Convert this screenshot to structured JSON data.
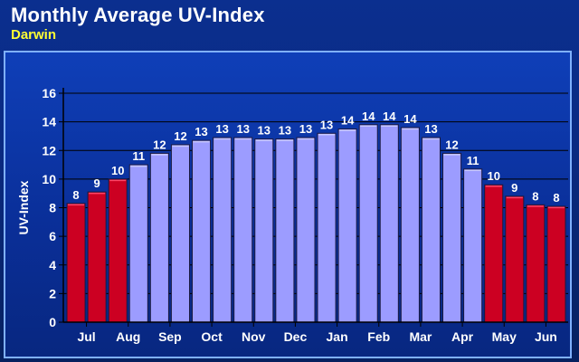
{
  "header": {
    "title": "Monthly Average UV-Index",
    "subtitle": "Darwin"
  },
  "colors": {
    "background": "#0a2a82",
    "bar_normal": "#9c9cff",
    "bar_highlight": "#cc0022",
    "bar_stroke": "#1a1a40",
    "grid": "#000000",
    "text": "#ffffff",
    "subtitle": "#ffff33"
  },
  "chart_data": {
    "type": "bar",
    "title": "Monthly Average UV-Index",
    "subtitle": "Darwin",
    "xlabel": "",
    "ylabel": "UV-Index",
    "ylim": [
      0,
      16
    ],
    "yticks": [
      0,
      2,
      4,
      6,
      8,
      10,
      12,
      14,
      16
    ],
    "grid": true,
    "month_labels": [
      "Jul",
      "Aug",
      "Sep",
      "Oct",
      "Nov",
      "Dec",
      "Jan",
      "Feb",
      "Mar",
      "Apr",
      "May",
      "Jun"
    ],
    "bars_per_month": 2,
    "values": [
      8.3,
      9.1,
      10.0,
      11.0,
      11.8,
      12.4,
      12.7,
      12.9,
      12.9,
      12.8,
      12.8,
      12.9,
      13.2,
      13.5,
      13.8,
      13.8,
      13.6,
      12.9,
      11.8,
      10.7,
      9.6,
      8.8,
      8.2,
      8.1
    ],
    "labels": [
      "8",
      "9",
      "10",
      "11",
      "12",
      "12",
      "13",
      "13",
      "13",
      "13",
      "13",
      "13",
      "13",
      "14",
      "14",
      "14",
      "14",
      "13",
      "12",
      "11",
      "10",
      "9",
      "8",
      "8"
    ],
    "highlight": [
      true,
      true,
      true,
      false,
      false,
      false,
      false,
      false,
      false,
      false,
      false,
      false,
      false,
      false,
      false,
      false,
      false,
      false,
      false,
      false,
      true,
      true,
      true,
      true
    ]
  }
}
